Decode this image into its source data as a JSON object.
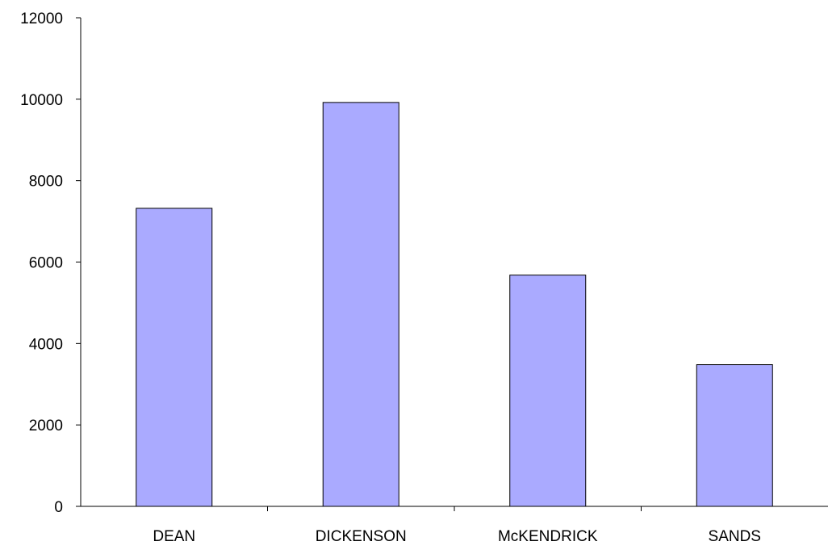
{
  "chart_data": {
    "type": "bar",
    "title": "",
    "xlabel": "",
    "ylabel": "",
    "categories": [
      "DEAN",
      "DICKENSON",
      "McKENDRICK",
      "SANDS"
    ],
    "values": [
      7320,
      9920,
      5680,
      3480
    ],
    "ylim": [
      0,
      12000
    ],
    "yticks": [
      0,
      2000,
      4000,
      6000,
      8000,
      10000,
      12000
    ],
    "ytick_labels": [
      "0",
      "2000",
      "4000",
      "6000",
      "8000",
      "10000",
      "12000"
    ],
    "grid": false,
    "legend": "none",
    "bar_color": "#aaaaff",
    "bar_edge_color": "#000000"
  }
}
